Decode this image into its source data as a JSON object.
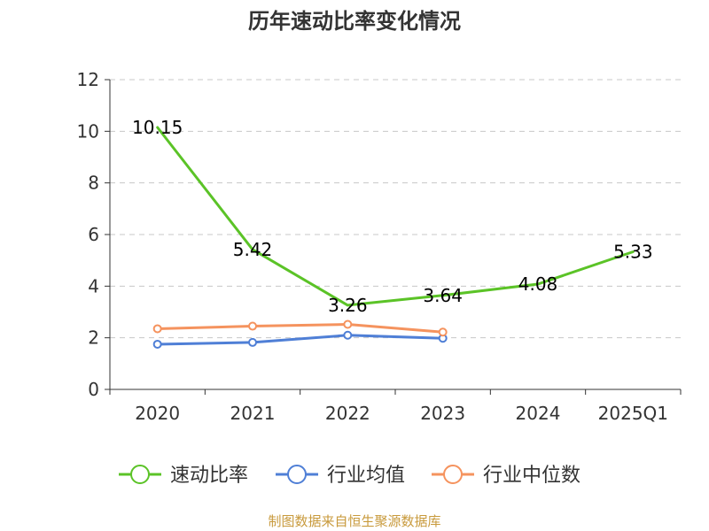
{
  "chart_data": {
    "type": "line",
    "title": "历年速动比率变化情况",
    "categories": [
      "2020",
      "2021",
      "2022",
      "2023",
      "2024",
      "2025Q1"
    ],
    "ylim": [
      0,
      12
    ],
    "y_ticks": [
      0,
      2,
      4,
      6,
      8,
      10,
      12
    ],
    "grid": true,
    "legend_position": "bottom",
    "series": [
      {
        "name": "速动比率",
        "color": "#5bc327",
        "values": [
          10.15,
          5.42,
          3.26,
          3.64,
          4.08,
          5.33
        ],
        "labels": [
          "10.15",
          "5.42",
          "3.26",
          "3.64",
          "4.08",
          "5.33"
        ],
        "show_markers": false
      },
      {
        "name": "行业均值",
        "color": "#4f7fd6",
        "values": [
          1.75,
          1.82,
          2.1,
          1.98,
          null,
          null
        ],
        "show_markers": true
      },
      {
        "name": "行业中位数",
        "color": "#f5935e",
        "values": [
          2.35,
          2.45,
          2.52,
          2.22,
          null,
          null
        ],
        "show_markers": true
      }
    ],
    "source": "制图数据来自恒生聚源数据库"
  }
}
